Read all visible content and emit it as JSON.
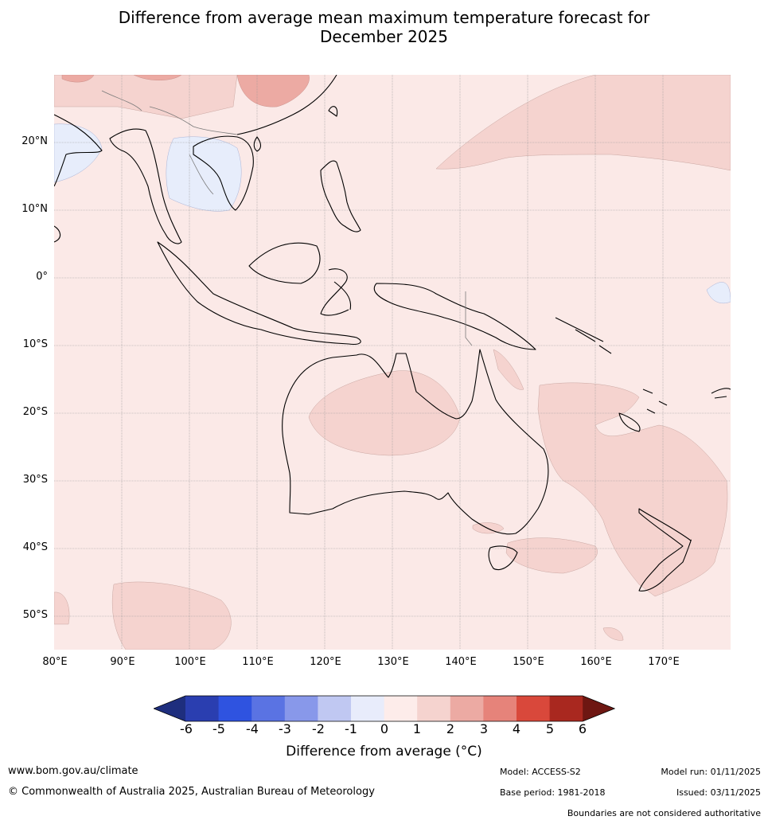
{
  "title_line1": "Difference from average mean maximum temperature forecast for",
  "title_line2": "December 2025",
  "map": {
    "lat_labels": [
      "20°N",
      "10°N",
      "0°",
      "10°S",
      "20°S",
      "30°S",
      "40°S",
      "50°S"
    ],
    "lon_labels": [
      "80°E",
      "90°E",
      "100°E",
      "110°E",
      "120°E",
      "130°E",
      "140°E",
      "150°E",
      "160°E",
      "170°E"
    ],
    "fill_colors": {
      "base_0_1": "#fbe9e7",
      "band_1_2": "#f5d3cf",
      "band_2_3": "#ecaaa3",
      "band_m1_0": "#e7edfb",
      "land_outline": "#000000",
      "border": "#808080"
    }
  },
  "colorbar": {
    "ticks": [
      "-6",
      "-5",
      "-4",
      "-3",
      "-2",
      "-1",
      "0",
      "1",
      "2",
      "3",
      "4",
      "5",
      "6"
    ],
    "colors": [
      "#1e2e7e",
      "#2a3eb0",
      "#2f53e0",
      "#5a73e3",
      "#8898ea",
      "#c0c8f2",
      "#e8ecfb",
      "#fdecea",
      "#f5d3cf",
      "#ecaaa3",
      "#e6837a",
      "#d9483b",
      "#a9281f",
      "#6e1712"
    ],
    "label": "Difference from average (°C)"
  },
  "footer": {
    "website": "www.bom.gov.au/climate",
    "copyright": "© Commonwealth of Australia 2025, Australian Bureau of Meteorology",
    "model": "Model: ACCESS-S2",
    "base_period": "Base period: 1981-2018",
    "model_run": "Model run: 01/11/2025",
    "issued": "Issued: 03/11/2025",
    "disclaimer": "Boundaries are not considered authoritative"
  }
}
